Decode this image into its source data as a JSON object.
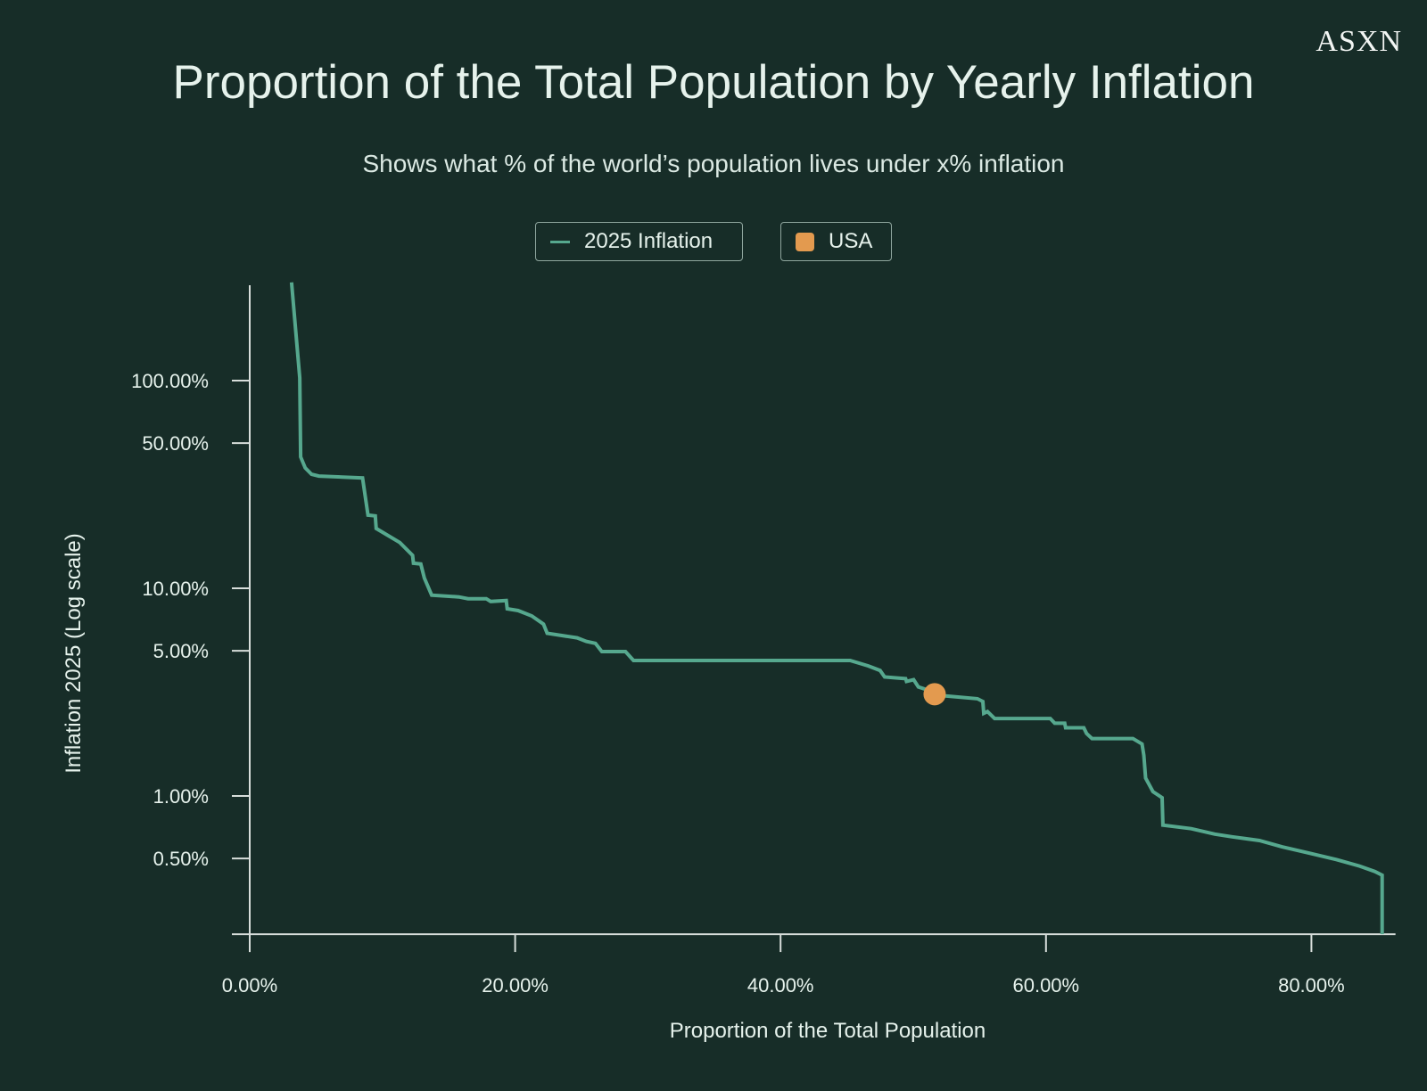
{
  "logo": "ASXN",
  "colors": {
    "background": "#172d28",
    "line": "#56a88e",
    "usa": "#e39a4f",
    "axis": "#d8dedb",
    "text": "#e6f2ec"
  },
  "chart_data": {
    "type": "line",
    "title": "Proportion of the Total Population by Yearly Inflation",
    "subtitle": "Shows what % of the world’s population lives under x% inflation",
    "xlabel": "Proportion of the Total Population",
    "ylabel": "Inflation 2025 (Log scale)",
    "yscale": "log",
    "xlim": [
      0,
      86
    ],
    "ylim": [
      0.216,
      300
    ],
    "x_ticks": [
      0,
      20,
      40,
      60,
      80
    ],
    "x_tick_labels": [
      "0.00%",
      "20.00%",
      "40.00%",
      "60.00%",
      "80.00%"
    ],
    "y_ticks": [
      100,
      50,
      10,
      5,
      1,
      0.5
    ],
    "y_tick_labels": [
      "100.00%",
      "50.00%",
      "10.00%",
      "5.00%",
      "1.00%",
      "0.50%"
    ],
    "legend": {
      "placement": "top-center",
      "entries": [
        "2025 Inflation",
        "USA"
      ]
    },
    "series": [
      {
        "name": "2025 Inflation",
        "type": "line",
        "x": [
          3.15,
          3.77,
          3.84,
          4.18,
          4.66,
          5.21,
          8.5,
          8.91,
          9.46,
          9.53,
          11.31,
          12.27,
          12.34,
          12.89,
          13.16,
          13.71,
          15.76,
          16.45,
          17.82,
          18.16,
          19.33,
          19.4,
          20.22,
          21.25,
          22.14,
          22.41,
          24.67,
          25.36,
          26.05,
          26.53,
          28.31,
          28.92,
          45.24,
          46.61,
          47.5,
          47.84,
          49.42,
          49.49,
          50.03,
          50.38,
          52.43,
          54.83,
          55.24,
          55.31,
          55.59,
          56.13,
          60.32,
          60.66,
          61.41,
          61.48,
          62.85,
          63.06,
          63.47,
          66.55,
          67.24,
          67.37,
          67.51,
          68.06,
          68.75,
          68.81,
          70.94,
          72.72,
          74.02,
          76.08,
          77.79,
          79.85,
          81.9,
          83.62,
          84.78,
          85.33,
          85.33
        ],
        "y": [
          297,
          103,
          42.9,
          38.0,
          35.4,
          34.7,
          34.0,
          22.5,
          22.3,
          19.4,
          16.6,
          14.4,
          13.2,
          13.1,
          11.2,
          9.27,
          9.09,
          8.91,
          8.91,
          8.64,
          8.73,
          7.97,
          7.81,
          7.36,
          6.72,
          6.07,
          5.77,
          5.55,
          5.43,
          4.96,
          4.96,
          4.49,
          4.49,
          4.23,
          4.02,
          3.74,
          3.67,
          3.56,
          3.63,
          3.35,
          3.03,
          2.94,
          2.85,
          2.5,
          2.55,
          2.36,
          2.36,
          2.24,
          2.24,
          2.13,
          2.13,
          2.0,
          1.89,
          1.89,
          1.78,
          1.57,
          1.22,
          1.05,
          0.98,
          0.724,
          0.696,
          0.655,
          0.636,
          0.61,
          0.569,
          0.53,
          0.494,
          0.46,
          0.433,
          0.416,
          0.216
        ]
      },
      {
        "name": "USA",
        "type": "scatter",
        "x": [
          51.61
        ],
        "y": [
          3.09
        ]
      }
    ]
  }
}
